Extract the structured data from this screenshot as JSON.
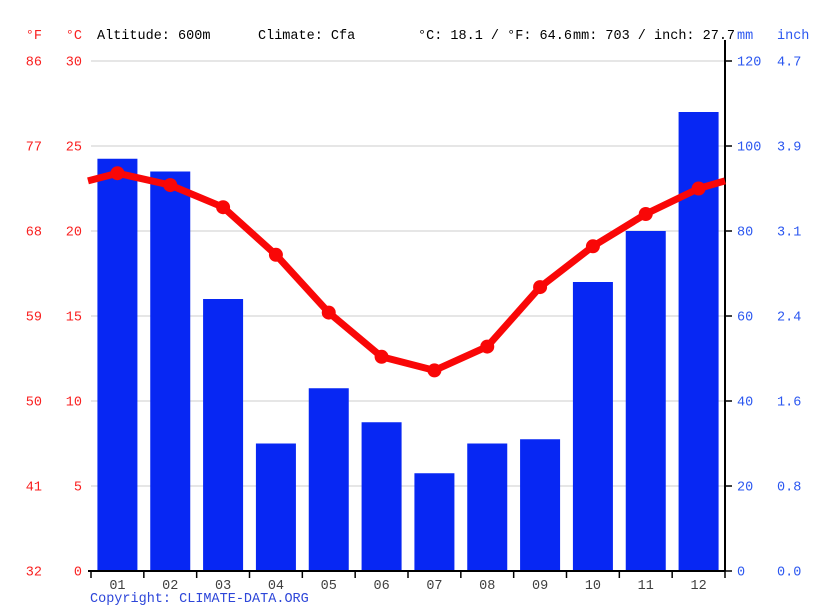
{
  "header": {
    "f_label": "°F",
    "c_label": "°C",
    "altitude": "Altitude: 600m",
    "climate": "Climate: Cfa",
    "temperature_summary": "°C: 18.1 / °F: 64.6",
    "precipitation_summary": "mm: 703 / inch: 27.7",
    "mm_label": "mm",
    "inch_label": "inch"
  },
  "footer": {
    "copyright_prefix": "Copyright: ",
    "copyright_link": "CLIMATE-DATA.ORG"
  },
  "colors": {
    "bar_blue": "#0727f3",
    "line_red": "#f90707",
    "axis_red": "#f92020",
    "axis_blue": "#2b57f0",
    "grid_gray": "#cccccc",
    "month_gray": "#3f3f3f",
    "axis_black": "#000000",
    "copyright_blue": "#2d46d9"
  },
  "chart_data": {
    "type": "combo",
    "title": "",
    "categories": [
      "01",
      "02",
      "03",
      "04",
      "05",
      "06",
      "07",
      "08",
      "09",
      "10",
      "11",
      "12"
    ],
    "series": [
      {
        "name": "precipitation_mm",
        "type": "bar",
        "values": [
          97,
          94,
          64,
          30,
          43,
          35,
          23,
          30,
          31,
          68,
          80,
          108
        ]
      },
      {
        "name": "temperature_c",
        "type": "line",
        "values": [
          23.4,
          22.7,
          21.4,
          18.6,
          15.2,
          12.6,
          11.8,
          13.2,
          16.7,
          19.1,
          21.0,
          22.5
        ]
      }
    ],
    "line_edge_c": 22.95,
    "axes": {
      "left_f_ticks": [
        "86",
        "77",
        "68",
        "59",
        "50",
        "41",
        "32"
      ],
      "left_c_ticks": [
        "30",
        "25",
        "20",
        "15",
        "10",
        "5",
        "0"
      ],
      "right_mm_ticks": [
        "120",
        "100",
        "80",
        "60",
        "40",
        "20",
        "0"
      ],
      "right_inch_ticks": [
        "4.7",
        "3.9",
        "3.1",
        "2.4",
        "1.6",
        "0.8",
        "0.0"
      ],
      "c_range": [
        0,
        30
      ],
      "mm_range": [
        0,
        120
      ],
      "grid": true,
      "legend": "none"
    }
  }
}
